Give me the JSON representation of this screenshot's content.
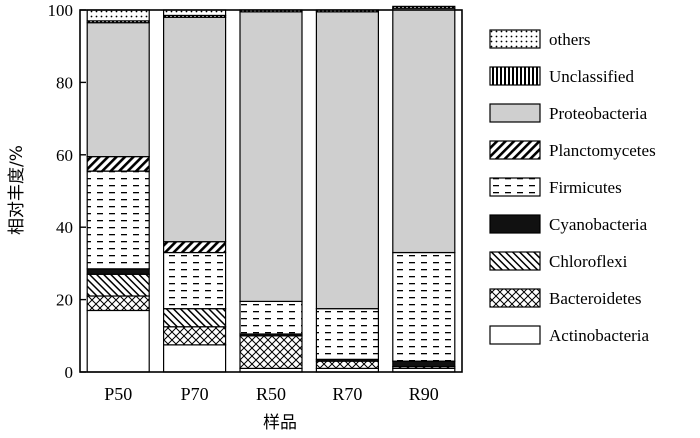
{
  "chart_data": {
    "type": "bar",
    "stacked": true,
    "title": "",
    "xlabel": "样品",
    "ylabel": "相对丰度/%",
    "ylim": [
      0,
      100
    ],
    "yticks": [
      0,
      20,
      40,
      60,
      80,
      100
    ],
    "categories": [
      "P50",
      "P70",
      "R50",
      "R70",
      "R90"
    ],
    "legend_position": "right",
    "series": [
      {
        "name": "Actinobacteria",
        "values": [
          17,
          7.5,
          1,
          1,
          1
        ]
      },
      {
        "name": "Bacteroidetes",
        "values": [
          4,
          5,
          9,
          2,
          0.5
        ]
      },
      {
        "name": "Chloroflexi",
        "values": [
          6,
          5,
          0,
          0,
          0
        ]
      },
      {
        "name": "Cyanobacteria",
        "values": [
          1.5,
          0,
          0.5,
          0.5,
          1.5
        ]
      },
      {
        "name": "Firmicutes",
        "values": [
          27,
          15.5,
          9,
          14,
          30
        ]
      },
      {
        "name": "Planctomycetes",
        "values": [
          4,
          3,
          0,
          0,
          0
        ]
      },
      {
        "name": "Proteobacteria",
        "values": [
          37,
          62,
          80,
          82,
          67.5
        ]
      },
      {
        "name": "Unclassified",
        "values": [
          0.5,
          0.5,
          0.5,
          0.5,
          0.5
        ]
      },
      {
        "name": "others",
        "values": [
          3,
          1.5,
          0,
          0,
          0
        ]
      }
    ],
    "legend_order": [
      "others",
      "Unclassified",
      "Proteobacteria",
      "Planctomycetes",
      "Firmicutes",
      "Cyanobacteria",
      "Chloroflexi",
      "Bacteroidetes",
      "Actinobacteria"
    ]
  }
}
